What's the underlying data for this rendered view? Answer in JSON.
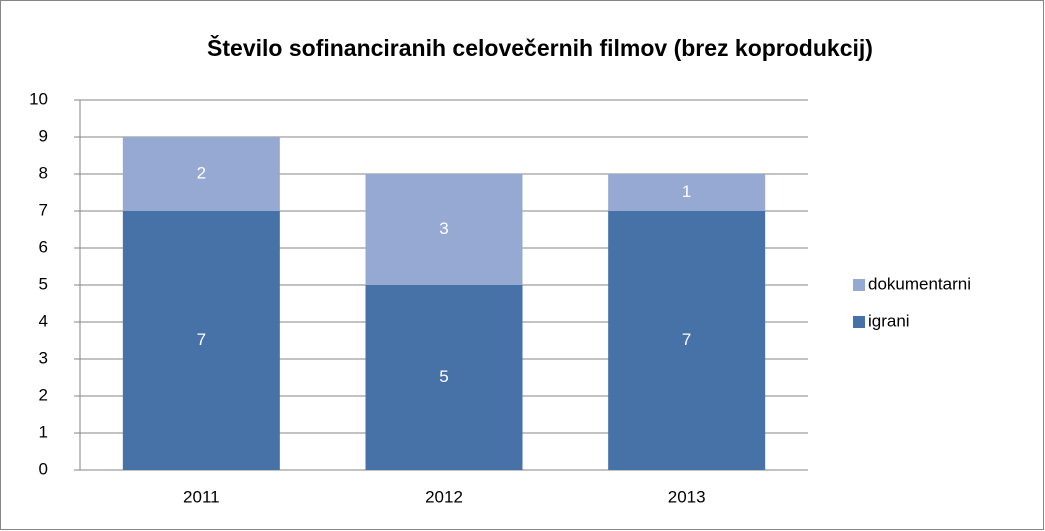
{
  "chart_data": {
    "type": "stacked_bar",
    "title": "Število sofinanciranih celovečernih filmov (brez koprodukcij)",
    "categories": [
      "2011",
      "2012",
      "2013"
    ],
    "series": [
      {
        "name": "igrani",
        "color": "#4672a8",
        "values": [
          7,
          5,
          7
        ]
      },
      {
        "name": "dokumentarni",
        "color": "#95a9d2",
        "values": [
          2,
          3,
          1
        ]
      }
    ],
    "ylim": [
      0,
      10
    ],
    "yticks": [
      0,
      1,
      2,
      3,
      4,
      5,
      6,
      7,
      8,
      9,
      10
    ],
    "grid": true,
    "legend": "right"
  }
}
